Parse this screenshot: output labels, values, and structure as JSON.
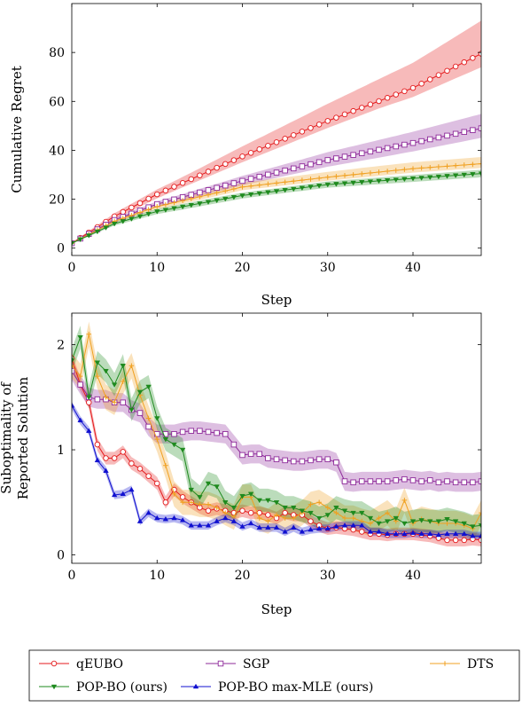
{
  "legend": {
    "entries": [
      {
        "name": "qEUBO",
        "color": "#e41a1c",
        "marker": "circle"
      },
      {
        "name": "SGP",
        "color": "#8e2a9a",
        "marker": "square"
      },
      {
        "name": "DTS",
        "color": "#f0a020",
        "marker": "plus"
      },
      {
        "name": "POP-BO (ours)",
        "color": "#1e8a1e",
        "marker": "tri-down"
      },
      {
        "name": "POP-BO max-MLE (ours)",
        "color": "#1010d0",
        "marker": "tri-up"
      }
    ]
  },
  "chart_data": [
    {
      "type": "line",
      "title": "",
      "xlabel": "Step",
      "ylabel": "Cumulative Regret",
      "xlim": [
        0,
        48
      ],
      "ylim": [
        -3,
        100
      ],
      "xticks": [
        0,
        10,
        20,
        30,
        40
      ],
      "yticks": [
        0,
        20,
        40,
        60,
        80
      ],
      "series": [
        {
          "name": "qEUBO",
          "color": "#e41a1c",
          "marker": "circle",
          "x_max": 48,
          "band": {
            "lower": [
              0.9,
              0.93,
              0.94,
              0.95,
              0.93
            ],
            "upper": [
              1.1,
              1.09,
              1.12,
              1.15,
              1.17
            ]
          },
          "curve_points": [
            [
              0,
              2
            ],
            [
              5,
              13
            ],
            [
              10,
              22
            ],
            [
              20,
              37.5
            ],
            [
              30,
              52
            ],
            [
              40,
              65.5
            ],
            [
              48,
              79.5
            ]
          ]
        },
        {
          "name": "SGP",
          "color": "#8e2a9a",
          "marker": "square",
          "x_max": 48,
          "band": {
            "lower": [
              0.92,
              0.94,
              0.93,
              0.92,
              0.92
            ],
            "upper": [
              1.08,
              1.06,
              1.08,
              1.1,
              1.12
            ]
          },
          "curve_points": [
            [
              0,
              2
            ],
            [
              5,
              11.5
            ],
            [
              10,
              18
            ],
            [
              20,
              27.5
            ],
            [
              30,
              36
            ],
            [
              40,
              43
            ],
            [
              48,
              49
            ]
          ]
        },
        {
          "name": "DTS",
          "color": "#f0a020",
          "marker": "plus",
          "x_max": 48,
          "band": {
            "lower": [
              0.93,
              0.94,
              0.95,
              0.95,
              0.95
            ],
            "upper": [
              1.07,
              1.07,
              1.07,
              1.08,
              1.08
            ]
          },
          "curve_points": [
            [
              0,
              2
            ],
            [
              5,
              11
            ],
            [
              10,
              17
            ],
            [
              20,
              25
            ],
            [
              30,
              29
            ],
            [
              40,
              32.5
            ],
            [
              48,
              34.5
            ]
          ]
        },
        {
          "name": "POP-BO (ours)",
          "color": "#1e8a1e",
          "marker": "tri-down",
          "x_max": 48,
          "band": {
            "lower": [
              0.92,
              0.93,
              0.95,
              0.95,
              0.95
            ],
            "upper": [
              1.08,
              1.07,
              1.05,
              1.05,
              1.05
            ]
          },
          "curve_points": [
            [
              0,
              2
            ],
            [
              5,
              10
            ],
            [
              10,
              15
            ],
            [
              20,
              21.5
            ],
            [
              30,
              26
            ],
            [
              40,
              28.5
            ],
            [
              48,
              30.5
            ]
          ]
        }
      ]
    },
    {
      "type": "line",
      "title": "",
      "xlabel": "Step",
      "ylabel": "Suboptimality of",
      "ylabel2": "Reported Solution",
      "xlim": [
        0,
        48
      ],
      "ylim": [
        -0.08,
        2.3
      ],
      "xticks": [
        0,
        10,
        20,
        30,
        40
      ],
      "yticks": [
        0,
        1,
        2
      ],
      "series": [
        {
          "name": "qEUBO",
          "color": "#e41a1c",
          "marker": "circle",
          "hw": 0.06,
          "x": [
            0,
            1,
            2,
            3,
            4,
            5,
            6,
            7,
            8,
            9,
            10,
            11,
            12,
            13,
            14,
            15,
            16,
            17,
            18,
            19,
            20,
            21,
            22,
            23,
            24,
            25,
            26,
            27,
            28,
            29,
            30,
            31,
            32,
            33,
            34,
            35,
            36,
            37,
            38,
            39,
            40,
            41,
            42,
            43,
            44,
            45,
            46,
            47,
            48
          ],
          "y": [
            1.87,
            1.62,
            1.45,
            1.05,
            0.92,
            0.92,
            0.98,
            0.87,
            0.82,
            0.75,
            0.68,
            0.5,
            0.62,
            0.55,
            0.5,
            0.45,
            0.42,
            0.44,
            0.42,
            0.4,
            0.42,
            0.4,
            0.4,
            0.38,
            0.35,
            0.4,
            0.38,
            0.38,
            0.32,
            0.28,
            0.25,
            0.26,
            0.25,
            0.24,
            0.22,
            0.2,
            0.2,
            0.19,
            0.2,
            0.2,
            0.2,
            0.19,
            0.18,
            0.16,
            0.14,
            0.14,
            0.14,
            0.15,
            0.14
          ]
        },
        {
          "name": "SGP",
          "color": "#8e2a9a",
          "marker": "square",
          "hw": 0.09,
          "x": [
            0,
            1,
            2,
            3,
            4,
            5,
            6,
            7,
            8,
            9,
            10,
            11,
            12,
            13,
            14,
            15,
            16,
            17,
            18,
            19,
            20,
            21,
            22,
            23,
            24,
            25,
            26,
            27,
            28,
            29,
            30,
            31,
            32,
            33,
            34,
            35,
            36,
            37,
            38,
            39,
            40,
            41,
            42,
            43,
            44,
            45,
            46,
            47,
            48
          ],
          "y": [
            1.75,
            1.62,
            1.5,
            1.48,
            1.48,
            1.45,
            1.45,
            1.38,
            1.35,
            1.22,
            1.15,
            1.15,
            1.15,
            1.17,
            1.18,
            1.18,
            1.17,
            1.16,
            1.15,
            1.05,
            0.95,
            0.96,
            0.96,
            0.92,
            0.91,
            0.9,
            0.89,
            0.89,
            0.9,
            0.91,
            0.91,
            0.88,
            0.7,
            0.69,
            0.7,
            0.7,
            0.7,
            0.7,
            0.71,
            0.72,
            0.71,
            0.7,
            0.71,
            0.69,
            0.7,
            0.69,
            0.69,
            0.69,
            0.7
          ]
        },
        {
          "name": "DTS",
          "color": "#f0a020",
          "marker": "plus",
          "hw": 0.12,
          "x": [
            0,
            1,
            2,
            3,
            4,
            5,
            6,
            7,
            8,
            9,
            10,
            11,
            12,
            13,
            14,
            15,
            16,
            17,
            18,
            19,
            20,
            21,
            22,
            23,
            24,
            25,
            26,
            27,
            28,
            29,
            30,
            31,
            32,
            33,
            34,
            35,
            36,
            37,
            38,
            39,
            40,
            41,
            42,
            43,
            44,
            45,
            46,
            47,
            48
          ],
          "y": [
            1.8,
            1.7,
            2.1,
            1.7,
            1.5,
            1.45,
            1.65,
            1.8,
            1.52,
            1.3,
            1.1,
            0.85,
            0.58,
            0.5,
            0.5,
            0.48,
            0.48,
            0.45,
            0.4,
            0.36,
            0.55,
            0.55,
            0.35,
            0.32,
            0.38,
            0.35,
            0.35,
            0.4,
            0.48,
            0.5,
            0.45,
            0.4,
            0.35,
            0.35,
            0.32,
            0.3,
            0.35,
            0.4,
            0.32,
            0.52,
            0.3,
            0.34,
            0.32,
            0.3,
            0.3,
            0.3,
            0.28,
            0.25,
            0.4
          ]
        },
        {
          "name": "POP-BO (ours)",
          "color": "#1e8a1e",
          "marker": "tri-down",
          "hw": 0.11,
          "x": [
            0,
            1,
            2,
            3,
            4,
            5,
            6,
            7,
            8,
            9,
            10,
            11,
            12,
            13,
            14,
            15,
            16,
            17,
            18,
            19,
            20,
            21,
            22,
            23,
            24,
            25,
            26,
            27,
            28,
            29,
            30,
            31,
            32,
            33,
            34,
            35,
            36,
            37,
            38,
            39,
            40,
            41,
            42,
            43,
            44,
            45,
            46,
            47,
            48
          ],
          "y": [
            1.85,
            2.07,
            1.5,
            1.83,
            1.75,
            1.62,
            1.8,
            1.38,
            1.55,
            1.6,
            1.3,
            1.1,
            1.05,
            1.0,
            0.62,
            0.55,
            0.68,
            0.65,
            0.5,
            0.45,
            0.56,
            0.58,
            0.52,
            0.52,
            0.5,
            0.45,
            0.45,
            0.42,
            0.4,
            0.35,
            0.38,
            0.45,
            0.42,
            0.4,
            0.4,
            0.35,
            0.3,
            0.32,
            0.35,
            0.3,
            0.32,
            0.33,
            0.32,
            0.32,
            0.34,
            0.32,
            0.3,
            0.27,
            0.28
          ]
        },
        {
          "name": "POP-BO max-MLE (ours)",
          "color": "#1010d0",
          "marker": "tri-up",
          "hw": 0.04,
          "x": [
            0,
            1,
            2,
            3,
            4,
            5,
            6,
            7,
            8,
            9,
            10,
            11,
            12,
            13,
            14,
            15,
            16,
            17,
            18,
            19,
            20,
            21,
            22,
            23,
            24,
            25,
            26,
            27,
            28,
            29,
            30,
            31,
            32,
            33,
            34,
            35,
            36,
            37,
            38,
            39,
            40,
            41,
            42,
            43,
            44,
            45,
            46,
            47,
            48
          ],
          "y": [
            1.42,
            1.28,
            1.18,
            0.9,
            0.8,
            0.57,
            0.58,
            0.62,
            0.32,
            0.4,
            0.35,
            0.34,
            0.35,
            0.33,
            0.28,
            0.28,
            0.28,
            0.32,
            0.35,
            0.32,
            0.27,
            0.3,
            0.26,
            0.26,
            0.26,
            0.22,
            0.26,
            0.22,
            0.24,
            0.25,
            0.25,
            0.27,
            0.28,
            0.28,
            0.28,
            0.22,
            0.22,
            0.2,
            0.2,
            0.2,
            0.21,
            0.2,
            0.2,
            0.19,
            0.2,
            0.2,
            0.2,
            0.18,
            0.18
          ]
        }
      ]
    }
  ]
}
